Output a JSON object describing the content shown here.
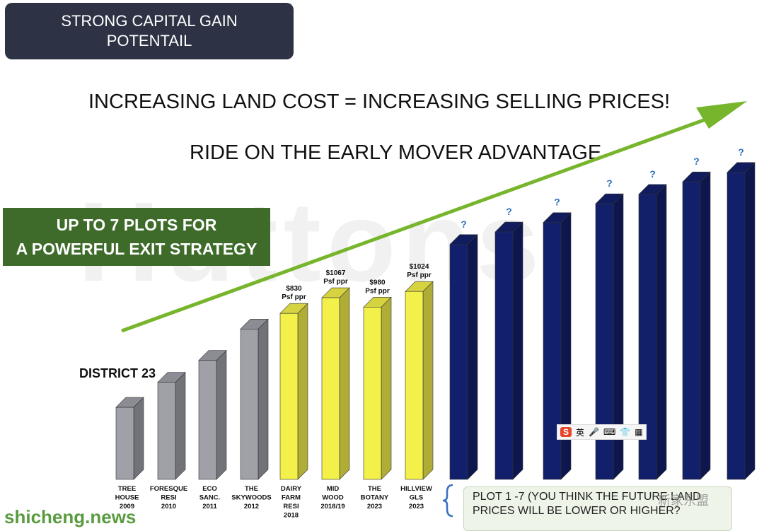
{
  "header": {
    "title_line1": "STRONG CAPITAL GAIN",
    "title_line2": "POTENTAIL"
  },
  "headline1": "INCREASING  LAND COST = INCREASING SELLING PRICES!",
  "headline2": "RIDE ON THE EARLY MOVER ADVANTAGE",
  "green_box": {
    "line1": "UP TO 7 PLOTS FOR",
    "line2": "A POWERFUL  EXIT STRATEGY"
  },
  "district_label": "DISTRICT 23",
  "plot_note": {
    "line1": "PLOT 1 -7 (YOU THINK THE FUTURE LAND",
    "line2": "PRICES  WILL BE LOWER OR HIGHER?"
  },
  "background_watermark": "Huttons",
  "watermarks": {
    "left": "shicheng.news",
    "right": "新家东盟"
  },
  "colors": {
    "grey_bar": "#9fa0a8",
    "yellow_bar": "#f3f04a",
    "blue_bar": "#12206b",
    "arrow": "#77b52c",
    "question": "#2f6fbf"
  },
  "chart_data": {
    "type": "bar",
    "categories": [
      [
        "TREE",
        "HOUSE",
        "2009"
      ],
      [
        "FORESQUE",
        "RESI",
        "2010"
      ],
      [
        "ECO",
        "SANC.",
        "2011"
      ],
      [
        "THE",
        "SKYWOODS",
        "2012"
      ],
      [
        "DAIRY",
        "FARM",
        "RESI",
        "2018"
      ],
      [
        "MID",
        "WOOD",
        "2018/19"
      ],
      [
        "THE",
        "BOTANY",
        "2023"
      ],
      [
        "HILLVIEW",
        "GLS",
        "2023"
      ],
      [],
      [],
      [],
      [],
      [],
      [],
      []
    ],
    "values": [
      23,
      31,
      38,
      48,
      53,
      58,
      55,
      60,
      75,
      79,
      82,
      88,
      91,
      95,
      98
    ],
    "groups": [
      "grey",
      "grey",
      "grey",
      "grey",
      "yellow",
      "yellow",
      "yellow",
      "yellow",
      "blue",
      "blue",
      "blue",
      "blue",
      "blue",
      "blue",
      "blue"
    ],
    "data_labels": [
      [],
      [],
      [],
      [],
      [
        "$830",
        "Psf ppr"
      ],
      [
        "$1067",
        "Psf ppr"
      ],
      [
        "$980",
        "Psf ppr"
      ],
      [
        "$1024",
        "Psf ppr"
      ],
      [
        "?"
      ],
      [
        "?"
      ],
      [
        "?"
      ],
      [
        "?"
      ],
      [
        "?"
      ],
      [
        "?"
      ],
      [
        "?"
      ]
    ],
    "ylim": [
      0,
      100
    ]
  }
}
